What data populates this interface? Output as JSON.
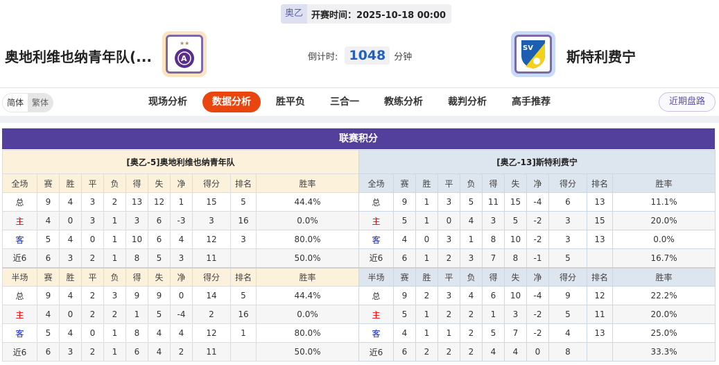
{
  "match": {
    "league": "奥乙",
    "kickoff_label": "开赛时间：",
    "kickoff": "2025-10-18 00:00",
    "home": "奥地利维也纳青年队(...",
    "away": "斯特利费宁",
    "countdown_label": "倒计时:",
    "countdown": "1048",
    "countdown_unit": "分钟"
  },
  "lang": {
    "simplified": "简体",
    "traditional": "繁体"
  },
  "tabs": [
    "现场分析",
    "数据分析",
    "胜平负",
    "三合一",
    "教练分析",
    "裁判分析",
    "高手推荐"
  ],
  "active_tab": "数据分析",
  "recent_button": "近期盘路",
  "colors": {
    "accent": "#e8450f",
    "title_bar": "#533f9c",
    "home_label": "#ee0000",
    "away_label": "#1226c8"
  },
  "standings": {
    "title": "联赛积分",
    "headers": [
      "赛",
      "胜",
      "平",
      "负",
      "得",
      "失",
      "净",
      "得分",
      "排名",
      "胜率"
    ],
    "full_label": "全场",
    "half_label": "半场",
    "teams": [
      {
        "caption": "[奥乙-5]奥地利维也纳青年队",
        "full": [
          [
            "总",
            "9",
            "4",
            "3",
            "2",
            "13",
            "12",
            "1",
            "15",
            "5",
            "44.4%"
          ],
          [
            "主",
            "4",
            "0",
            "3",
            "1",
            "3",
            "6",
            "-3",
            "3",
            "16",
            "0.0%"
          ],
          [
            "客",
            "5",
            "4",
            "0",
            "1",
            "10",
            "6",
            "4",
            "12",
            "3",
            "80.0%"
          ],
          [
            "近6",
            "6",
            "3",
            "2",
            "1",
            "8",
            "5",
            "3",
            "11",
            "",
            "50.0%"
          ]
        ],
        "half": [
          [
            "总",
            "9",
            "4",
            "2",
            "3",
            "9",
            "9",
            "0",
            "14",
            "5",
            "44.4%"
          ],
          [
            "主",
            "4",
            "0",
            "2",
            "2",
            "1",
            "5",
            "-4",
            "2",
            "16",
            "0.0%"
          ],
          [
            "客",
            "5",
            "4",
            "0",
            "1",
            "8",
            "4",
            "4",
            "12",
            "1",
            "80.0%"
          ],
          [
            "近6",
            "6",
            "3",
            "2",
            "1",
            "6",
            "4",
            "2",
            "11",
            "",
            "50.0%"
          ]
        ]
      },
      {
        "caption": "[奥乙-13]斯特利费宁",
        "full": [
          [
            "总",
            "9",
            "1",
            "3",
            "5",
            "11",
            "15",
            "-4",
            "6",
            "13",
            "11.1%"
          ],
          [
            "主",
            "5",
            "1",
            "0",
            "4",
            "3",
            "5",
            "-2",
            "3",
            "15",
            "20.0%"
          ],
          [
            "客",
            "4",
            "0",
            "3",
            "1",
            "8",
            "10",
            "-2",
            "3",
            "13",
            "0.0%"
          ],
          [
            "近6",
            "6",
            "1",
            "2",
            "3",
            "7",
            "8",
            "-1",
            "5",
            "",
            "16.7%"
          ]
        ],
        "half": [
          [
            "总",
            "9",
            "2",
            "3",
            "4",
            "6",
            "10",
            "-4",
            "9",
            "12",
            "22.2%"
          ],
          [
            "主",
            "5",
            "1",
            "2",
            "2",
            "1",
            "3",
            "-2",
            "5",
            "11",
            "20.0%"
          ],
          [
            "客",
            "4",
            "1",
            "1",
            "2",
            "5",
            "7",
            "-2",
            "4",
            "13",
            "25.0%"
          ],
          [
            "近6",
            "6",
            "2",
            "2",
            "2",
            "4",
            "4",
            "0",
            "8",
            "",
            "33.3%"
          ]
        ]
      }
    ]
  }
}
